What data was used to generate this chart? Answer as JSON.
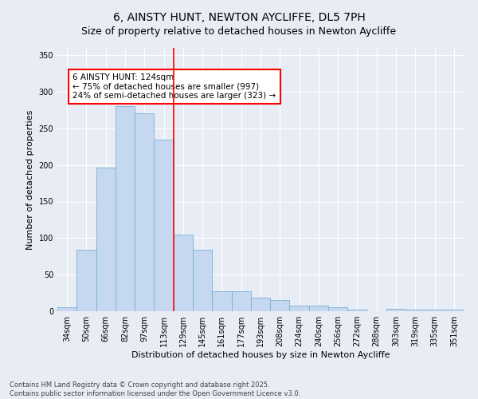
{
  "title1": "6, AINSTY HUNT, NEWTON AYCLIFFE, DL5 7PH",
  "title2": "Size of property relative to detached houses in Newton Aycliffe",
  "xlabel": "Distribution of detached houses by size in Newton Aycliffe",
  "ylabel": "Number of detached properties",
  "categories": [
    "34sqm",
    "50sqm",
    "66sqm",
    "82sqm",
    "97sqm",
    "113sqm",
    "129sqm",
    "145sqm",
    "161sqm",
    "177sqm",
    "193sqm",
    "208sqm",
    "224sqm",
    "240sqm",
    "256sqm",
    "272sqm",
    "288sqm",
    "303sqm",
    "319sqm",
    "335sqm",
    "351sqm"
  ],
  "values": [
    6,
    84,
    196,
    280,
    270,
    235,
    105,
    84,
    27,
    27,
    19,
    15,
    8,
    8,
    5,
    2,
    0,
    3,
    2,
    2,
    2
  ],
  "bar_color": "#c5d8f0",
  "bar_edge_color": "#7aafd4",
  "vline_x": 5.5,
  "vline_color": "red",
  "annotation_text": "6 AINSTY HUNT: 124sqm\n← 75% of detached houses are smaller (997)\n24% of semi-detached houses are larger (323) →",
  "annotation_box_color": "white",
  "annotation_box_edge_color": "red",
  "ylim": [
    0,
    360
  ],
  "yticks": [
    0,
    50,
    100,
    150,
    200,
    250,
    300,
    350
  ],
  "background_color": "#e8edf5",
  "plot_background_color": "#e8edf5",
  "footer_text": "Contains HM Land Registry data © Crown copyright and database right 2025.\nContains public sector information licensed under the Open Government Licence v3.0.",
  "title_fontsize": 10,
  "subtitle_fontsize": 9,
  "tick_fontsize": 7,
  "label_fontsize": 8,
  "annotation_fontsize": 7.5,
  "footer_fontsize": 6
}
